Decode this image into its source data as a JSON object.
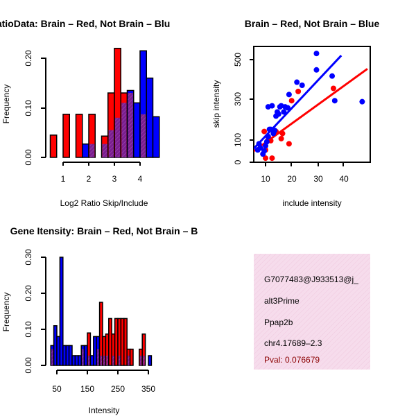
{
  "colors": {
    "red": "#ff0000",
    "blue": "#0000ff",
    "overlap": "#7a1f8f",
    "pval": "#8b0000",
    "info_bg": "#f6dcec"
  },
  "chart_data": [
    {
      "type": "bar",
      "title": "RatioData: Brain – Red, Not Brain – Blu",
      "xlabel": "Log2 Ratio Skip/Include",
      "ylabel": "Frequency",
      "xlim": [
        0.5,
        4.8
      ],
      "ylim": [
        0,
        0.22
      ],
      "xticks": [
        "1",
        "2",
        "3",
        "4"
      ],
      "xtick_values": [
        1,
        2,
        3,
        4
      ],
      "yticks": [
        "0.00",
        "0.10",
        "0.20"
      ],
      "ytick_values": [
        0,
        0.1,
        0.2
      ],
      "bin_width": 0.25,
      "series": [
        {
          "name": "Brain",
          "color": "red",
          "bins": [
            [
              0.5,
              0.045
            ],
            [
              1.0,
              0.087
            ],
            [
              1.5,
              0.087
            ],
            [
              2.0,
              0.087
            ],
            [
              2.5,
              0.043
            ],
            [
              2.75,
              0.13
            ],
            [
              3.0,
              0.22
            ],
            [
              3.25,
              0.13
            ],
            [
              3.5,
              0.13
            ],
            [
              4.0,
              0.087
            ]
          ]
        },
        {
          "name": "Not Brain",
          "color": "blue",
          "bins": [
            [
              1.75,
              0.027
            ],
            [
              2.0,
              0.027
            ],
            [
              2.5,
              0.027
            ],
            [
              2.75,
              0.055
            ],
            [
              3.0,
              0.08
            ],
            [
              3.25,
              0.11
            ],
            [
              3.5,
              0.135
            ],
            [
              3.75,
              0.11
            ],
            [
              4.0,
              0.215
            ],
            [
              4.25,
              0.16
            ],
            [
              4.5,
              0.082
            ]
          ]
        }
      ]
    },
    {
      "type": "scatter",
      "title": "Brain – Red, Not Brain – Blue",
      "xlabel": "include intensity",
      "ylabel": "skip intensity",
      "xlim": [
        5,
        49
      ],
      "ylim": [
        0,
        555
      ],
      "xticks": [
        "10",
        "20",
        "30",
        "40"
      ],
      "xtick_values": [
        10,
        20,
        30,
        40
      ],
      "yticks": [
        "0",
        "100",
        "300",
        "500"
      ],
      "ytick_values": [
        0,
        100,
        300,
        500
      ],
      "series": [
        {
          "name": "Brain",
          "color": "red",
          "points": [
            [
              9,
              40
            ],
            [
              10,
              20
            ],
            [
              10,
              60
            ],
            [
              9.5,
              150
            ],
            [
              11,
              110
            ],
            [
              11,
              125
            ],
            [
              12,
              105
            ],
            [
              12.5,
              20
            ],
            [
              14,
              150
            ],
            [
              16,
              115
            ],
            [
              16.5,
              140
            ],
            [
              19,
              90
            ],
            [
              20,
              300
            ],
            [
              22.5,
              345
            ],
            [
              36,
              360
            ]
          ],
          "fit": [
            [
              5,
              50
            ],
            [
              49,
              455
            ]
          ]
        },
        {
          "name": "Not Brain",
          "color": "blue",
          "points": [
            [
              7,
              60
            ],
            [
              7.5,
              90
            ],
            [
              8,
              70
            ],
            [
              9,
              40
            ],
            [
              9.5,
              55
            ],
            [
              10,
              80
            ],
            [
              10.5,
              100
            ],
            [
              11,
              125
            ],
            [
              11,
              270
            ],
            [
              11.5,
              160
            ],
            [
              12,
              160
            ],
            [
              12.5,
              275
            ],
            [
              13,
              140
            ],
            [
              13.5,
              155
            ],
            [
              14,
              225
            ],
            [
              14.5,
              245
            ],
            [
              15,
              235
            ],
            [
              15.5,
              270
            ],
            [
              16,
              275
            ],
            [
              17,
              245
            ],
            [
              17.5,
              270
            ],
            [
              18.5,
              265
            ],
            [
              19,
              330
            ],
            [
              22,
              390
            ],
            [
              24,
              375
            ],
            [
              29.5,
              530
            ],
            [
              29.5,
              450
            ],
            [
              35.5,
              420
            ],
            [
              36.5,
              300
            ],
            [
              47,
              295
            ]
          ],
          "fit": [
            [
              5,
              60
            ],
            [
              39,
              520
            ]
          ]
        }
      ]
    },
    {
      "type": "bar",
      "title": "Gene Itensity: Brain – Red, Not Brain – B",
      "xlabel": "Intensity",
      "ylabel": "Frequency",
      "xlim": [
        25,
        385
      ],
      "ylim": [
        0,
        0.3
      ],
      "xticks": [
        "50",
        "150",
        "250",
        "350"
      ],
      "xtick_values": [
        50,
        150,
        250,
        350
      ],
      "yticks": [
        "0.00",
        "0.10",
        "0.20",
        "0.30"
      ],
      "ytick_values": [
        0,
        0.1,
        0.2,
        0.3
      ],
      "bin_width": 10,
      "series": [
        {
          "name": "Brain",
          "color": "red",
          "bins": [
            [
              30,
              0.045
            ],
            [
              130,
              0.045
            ],
            [
              150,
              0.09
            ],
            [
              180,
              0.045
            ],
            [
              190,
              0.175
            ],
            [
              200,
              0.08
            ],
            [
              210,
              0.087
            ],
            [
              220,
              0.13
            ],
            [
              230,
              0.087
            ],
            [
              240,
              0.13
            ],
            [
              250,
              0.13
            ],
            [
              260,
              0.13
            ],
            [
              270,
              0.13
            ],
            [
              280,
              0.045
            ],
            [
              290,
              0.045
            ],
            [
              320,
              0.045
            ],
            [
              330,
              0.087
            ]
          ]
        },
        {
          "name": "Not Brain",
          "color": "blue",
          "bins": [
            [
              30,
              0.055
            ],
            [
              40,
              0.11
            ],
            [
              50,
              0.08
            ],
            [
              60,
              0.3
            ],
            [
              70,
              0.055
            ],
            [
              80,
              0.055
            ],
            [
              90,
              0.055
            ],
            [
              100,
              0.027
            ],
            [
              110,
              0.027
            ],
            [
              120,
              0.027
            ],
            [
              130,
              0.055
            ],
            [
              140,
              0.055
            ],
            [
              150,
              0.027
            ],
            [
              160,
              0.027
            ],
            [
              170,
              0.08
            ],
            [
              180,
              0.08
            ],
            [
              190,
              0.027
            ],
            [
              200,
              0.027
            ],
            [
              210,
              0.027
            ],
            [
              230,
              0.027
            ],
            [
              250,
              0.027
            ],
            [
              280,
              0.027
            ],
            [
              320,
              0.027
            ],
            [
              330,
              0.027
            ],
            [
              350,
              0.027
            ]
          ]
        }
      ]
    }
  ],
  "info_box": {
    "id": "G7077483@J933513@j_",
    "event_type": "alt3Prime",
    "gene": "Ppap2b",
    "location": "chr4.17689–2.3",
    "pval": "Pval: 0.076679"
  }
}
